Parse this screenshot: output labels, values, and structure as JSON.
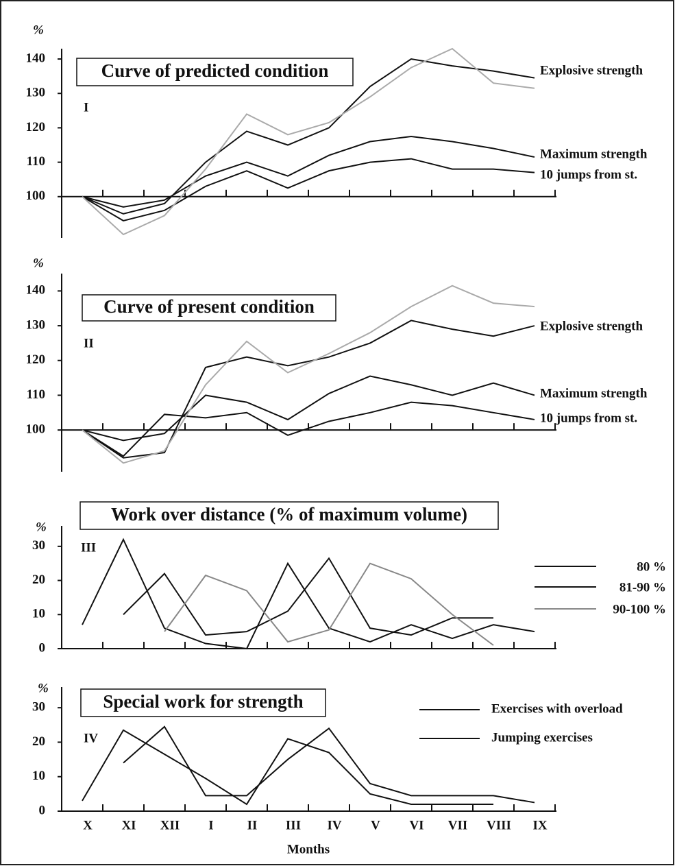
{
  "chart_data": [
    {
      "type": "line",
      "title": "Curve of predicted condition",
      "panel": "I",
      "y_label": "%",
      "ylim": [
        88,
        143
      ],
      "yticks": [
        100,
        110,
        120,
        130,
        140
      ],
      "series": [
        {
          "name": "Explosive strength",
          "color": "#111111",
          "values": [
            100,
            95,
            98,
            110,
            119,
            115,
            120,
            132,
            140,
            138,
            136.5,
            134.5
          ]
        },
        {
          "name": "Maximum strength",
          "color": "#111111",
          "values": [
            100,
            97,
            99,
            106,
            110,
            106,
            112,
            116,
            117.5,
            116,
            114,
            111.5
          ]
        },
        {
          "name": "10 jumps from st.",
          "color": "#111111",
          "values": [
            100,
            93,
            96,
            103,
            107.5,
            102.5,
            107.5,
            110,
            111,
            108,
            108,
            107
          ]
        },
        {
          "color": "#aaaaaa",
          "values": [
            100,
            89,
            94.5,
            108,
            124,
            118,
            121.5,
            129,
            137.5,
            143,
            133,
            131.5
          ]
        }
      ]
    },
    {
      "type": "line",
      "title": "Curve of present condition",
      "panel": "II",
      "y_label": "%",
      "ylim": [
        88,
        145
      ],
      "yticks": [
        100,
        110,
        120,
        130,
        140
      ],
      "series": [
        {
          "name": "Explosive strength",
          "color": "#111111",
          "values": [
            100,
            92,
            93.5,
            118,
            121,
            118.5,
            121,
            125,
            131.5,
            129,
            127,
            130
          ]
        },
        {
          "name": "Maximum strength",
          "color": "#111111",
          "values": [
            100,
            97,
            99,
            110,
            108,
            103,
            110.5,
            115.5,
            113,
            110,
            113.5,
            110
          ]
        },
        {
          "name": "10 jumps from st.",
          "color": "#111111",
          "values": [
            100,
            92.5,
            104.5,
            103.5,
            105,
            98.5,
            102.5,
            105,
            108,
            107,
            105,
            103
          ]
        },
        {
          "color": "#aaaaaa",
          "values": [
            100,
            90.5,
            94,
            113,
            125.5,
            116.5,
            122,
            128,
            135.5,
            141.5,
            136.5,
            135.5
          ]
        }
      ]
    },
    {
      "type": "line",
      "title": "Work over distance (% of maximum volume)",
      "panel": "III",
      "y_label": "%",
      "ylim": [
        0,
        36
      ],
      "yticks": [
        0,
        10,
        20,
        30
      ],
      "series": [
        {
          "name": "80 %",
          "color": "#111111",
          "values": [
            7,
            32,
            6,
            1.5,
            0,
            25,
            6,
            2,
            7,
            3,
            7,
            5
          ]
        },
        {
          "name": "81-90 %",
          "color": "#111111",
          "values": [
            null,
            10,
            22,
            4,
            5,
            11,
            26.5,
            6,
            4,
            9,
            9,
            null
          ]
        },
        {
          "name": "90-100 %",
          "color": "#888888",
          "values": [
            null,
            null,
            5,
            21.5,
            17,
            2,
            5.5,
            25,
            20.5,
            10,
            1,
            null
          ]
        }
      ]
    },
    {
      "type": "line",
      "title": "Special work for strength",
      "panel": "IV",
      "y_label": "%",
      "x_label": "Months",
      "categories": [
        "X",
        "XI",
        "XII",
        "I",
        "II",
        "III",
        "IV",
        "V",
        "VI",
        "VII",
        "VIII",
        "IX"
      ],
      "ylim": [
        0,
        36
      ],
      "yticks": [
        0,
        10,
        20,
        30
      ],
      "series": [
        {
          "name": "Exercises with overload",
          "color": "#111111",
          "values": [
            3,
            23.5,
            16.5,
            9.5,
            2,
            21,
            17,
            5,
            2,
            2,
            2,
            null
          ]
        },
        {
          "name": "Jumping exercises",
          "color": "#111111",
          "values": [
            null,
            14,
            24.5,
            4.5,
            4.5,
            15,
            24,
            8,
            4.5,
            4.5,
            4.5,
            2.5
          ]
        }
      ]
    }
  ]
}
